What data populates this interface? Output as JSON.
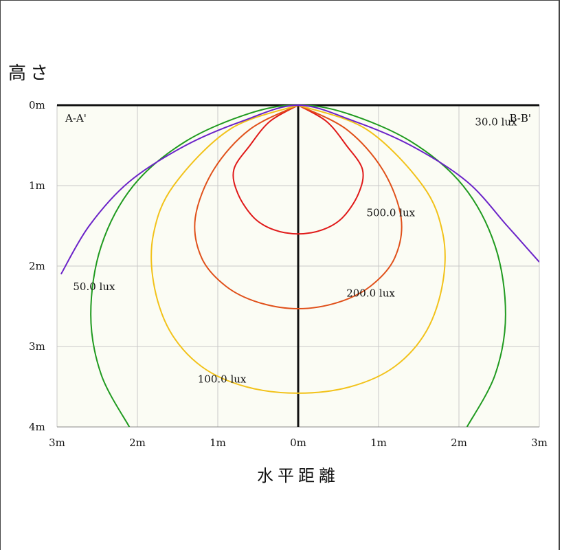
{
  "chart_data": {
    "type": "line",
    "title": "",
    "ylabel": "高さ",
    "xlabel": "水平距離",
    "section_left": "A-A'",
    "section_right": "B-B'",
    "x_ticks": [
      "3m",
      "2m",
      "1m",
      "0m",
      "1m",
      "2m",
      "3m"
    ],
    "y_ticks": [
      "0m",
      "1m",
      "2m",
      "3m",
      "4m"
    ],
    "xlim": [
      -3,
      3
    ],
    "ylim": [
      0,
      4
    ],
    "grid": true,
    "colors": {
      "30.0 lux": "#6a22c8",
      "50.0 lux": "#1f9a1f",
      "100.0 lux": "#f2c21a",
      "200.0 lux": "#e0501a",
      "500.0 lux": "#e01818"
    },
    "series": [
      {
        "name": "500.0 lux",
        "points": [
          [
            0,
            0
          ],
          [
            -0.35,
            0.2
          ],
          [
            -0.6,
            0.5
          ],
          [
            -0.8,
            0.8
          ],
          [
            -0.75,
            1.1
          ],
          [
            -0.55,
            1.4
          ],
          [
            -0.3,
            1.55
          ],
          [
            0,
            1.6
          ],
          [
            0.3,
            1.55
          ],
          [
            0.55,
            1.4
          ],
          [
            0.75,
            1.1
          ],
          [
            0.8,
            0.8
          ],
          [
            0.6,
            0.5
          ],
          [
            0.35,
            0.2
          ],
          [
            0,
            0
          ]
        ]
      },
      {
        "name": "200.0 lux",
        "points": [
          [
            0,
            0
          ],
          [
            -0.6,
            0.3
          ],
          [
            -1.05,
            0.8
          ],
          [
            -1.28,
            1.4
          ],
          [
            -1.2,
            1.9
          ],
          [
            -0.9,
            2.25
          ],
          [
            -0.5,
            2.45
          ],
          [
            0,
            2.53
          ],
          [
            0.5,
            2.45
          ],
          [
            0.9,
            2.25
          ],
          [
            1.2,
            1.9
          ],
          [
            1.28,
            1.4
          ],
          [
            1.05,
            0.8
          ],
          [
            0.6,
            0.3
          ],
          [
            0,
            0
          ]
        ]
      },
      {
        "name": "100.0 lux",
        "points": [
          [
            0,
            0
          ],
          [
            -0.85,
            0.3
          ],
          [
            -1.55,
            1.0
          ],
          [
            -1.8,
            1.6
          ],
          [
            -1.8,
            2.2
          ],
          [
            -1.6,
            2.8
          ],
          [
            -1.2,
            3.25
          ],
          [
            -0.65,
            3.5
          ],
          [
            0,
            3.58
          ],
          [
            0.65,
            3.5
          ],
          [
            1.2,
            3.25
          ],
          [
            1.6,
            2.8
          ],
          [
            1.8,
            2.2
          ],
          [
            1.8,
            1.6
          ],
          [
            1.55,
            1.0
          ],
          [
            0.85,
            0.3
          ],
          [
            0,
            0
          ]
        ]
      },
      {
        "name": "50.0 lux",
        "points": [
          [
            -2.1,
            4.0
          ],
          [
            -2.45,
            3.35
          ],
          [
            -2.58,
            2.6
          ],
          [
            -2.45,
            1.75
          ],
          [
            -2.05,
            1.0
          ],
          [
            -1.4,
            0.45
          ],
          [
            -0.6,
            0.1
          ],
          [
            0,
            0
          ],
          [
            0.6,
            0.1
          ],
          [
            1.4,
            0.45
          ],
          [
            2.05,
            1.0
          ],
          [
            2.45,
            1.75
          ],
          [
            2.58,
            2.6
          ],
          [
            2.45,
            3.35
          ],
          [
            2.1,
            4.0
          ]
        ]
      },
      {
        "name": "30.0 lux",
        "points": [
          [
            -2.95,
            2.1
          ],
          [
            -2.6,
            1.5
          ],
          [
            -2.1,
            0.95
          ],
          [
            -1.4,
            0.5
          ],
          [
            -0.7,
            0.2
          ],
          [
            0,
            0
          ],
          [
            0.7,
            0.2
          ],
          [
            1.4,
            0.5
          ],
          [
            2.1,
            0.95
          ],
          [
            2.6,
            1.5
          ],
          [
            3.0,
            1.95
          ]
        ]
      }
    ],
    "annotations": [
      {
        "text": "500.0 lux",
        "x": 0.85,
        "y": 1.38
      },
      {
        "text": "200.0 lux",
        "x": 0.6,
        "y": 2.38
      },
      {
        "text": "100.0 lux",
        "x": -1.25,
        "y": 3.45
      },
      {
        "text": "50.0 lux",
        "x": -2.8,
        "y": 2.3
      },
      {
        "text": "30.0 lux",
        "x": 2.2,
        "y": 0.25
      }
    ]
  }
}
